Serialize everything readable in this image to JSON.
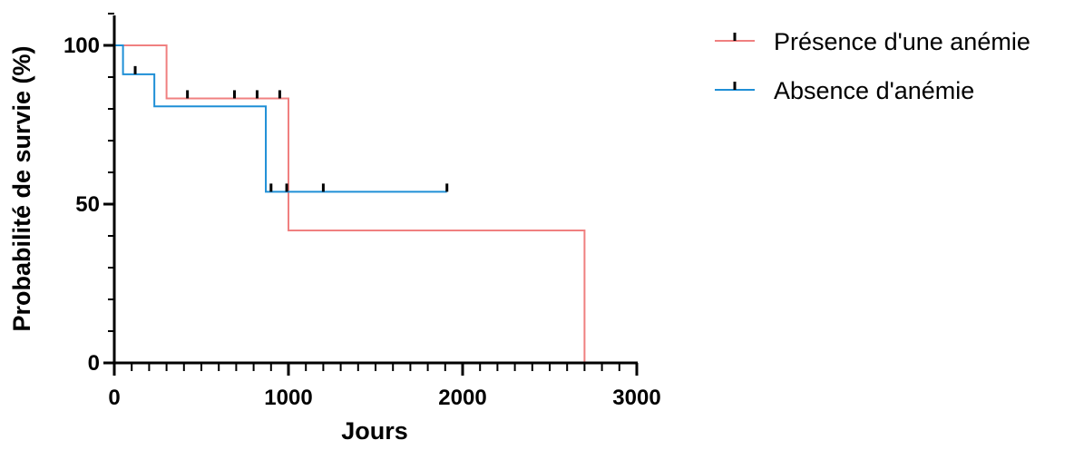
{
  "chart_data": {
    "type": "line",
    "subtype": "kaplan-meier-survival",
    "xlabel": "Jours",
    "ylabel": "Probabilité de survie (%)",
    "xlim": [
      0,
      3000
    ],
    "ylim": [
      0,
      100
    ],
    "x_ticks": [
      0,
      1000,
      2000,
      3000
    ],
    "x_tick_labels": [
      "0",
      "1000",
      "2000",
      "3000"
    ],
    "y_ticks": [
      0,
      50,
      100
    ],
    "y_tick_labels": [
      "0",
      "50",
      "100"
    ],
    "grid": false,
    "legend_position": "top-right",
    "series": [
      {
        "name": "Présence d'une anémie",
        "color": "#f08080",
        "steps": [
          [
            0,
            100
          ],
          [
            300,
            83.3
          ],
          [
            1000,
            41.7
          ],
          [
            2700,
            0
          ]
        ],
        "x_end": 2700,
        "censored": [
          [
            420,
            83.3
          ],
          [
            690,
            83.3
          ],
          [
            820,
            83.3
          ],
          [
            950,
            83.3
          ]
        ]
      },
      {
        "name": "Absence d'anémie",
        "color": "#1f8fd6",
        "steps": [
          [
            0,
            100
          ],
          [
            50,
            90.9
          ],
          [
            230,
            80.8
          ],
          [
            870,
            53.9
          ]
        ],
        "x_end": 1910,
        "censored": [
          [
            120,
            90.9
          ],
          [
            900,
            53.9
          ],
          [
            990,
            53.9
          ],
          [
            1200,
            53.9
          ],
          [
            1910,
            53.9
          ]
        ]
      }
    ]
  }
}
